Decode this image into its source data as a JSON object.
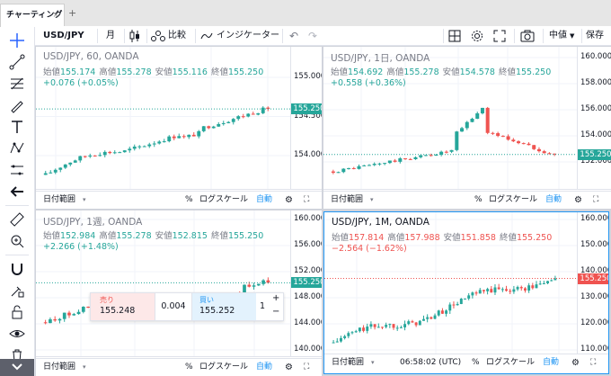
{
  "tab": {
    "label": "チャーティング"
  },
  "toolbar": {
    "symbol": "USD/JPY",
    "interval": "月",
    "compare": "比較",
    "indicators": "インジケーター",
    "price_type": "中値",
    "save": "保存"
  },
  "charts": [
    {
      "title": "USD/JPY, 60, OANDA",
      "ohlc": {
        "o_label": "始値",
        "o": "155.174",
        "h_label": "高値",
        "h": "155.278",
        "l_label": "安値",
        "l": "155.116",
        "c_label": "終値",
        "c": "155.250"
      },
      "change": "+0.076 (+0.05%)",
      "price_tag": "155.250",
      "y_ticks": [
        "155.000",
        "154.500",
        "154.000"
      ],
      "x_ticks": [
        "7",
        "12:00",
        "8",
        "09:00"
      ],
      "bottom": {
        "range": "日付範囲",
        "percent": "%",
        "log": "ログスケール",
        "auto": "自動"
      }
    },
    {
      "title": "USD/JPY, 1日, OANDA",
      "ohlc": {
        "o_label": "始値",
        "o": "154.692",
        "h_label": "高値",
        "h": "155.278",
        "l_label": "安値",
        "l": "154.578",
        "c_label": "終値",
        "c": "155.250"
      },
      "change": "+0.558 (+0.36%)",
      "price_tag": "155.250",
      "y_ticks": [
        "160.000",
        "158.000",
        "156.000",
        "154.000",
        "152.000"
      ],
      "x_ticks": [
        "4月",
        "10",
        "19",
        "5月",
        "10"
      ],
      "bottom": {
        "range": "日付範囲",
        "percent": "%",
        "log": "ログスケール",
        "auto": "自動"
      }
    },
    {
      "title": "USD/JPY, 1週, OANDA",
      "ohlc": {
        "o_label": "始値",
        "o": "152.984",
        "h_label": "高値",
        "h": "155.278",
        "l_label": "安値",
        "l": "152.815",
        "c_label": "終値",
        "c": "155.250"
      },
      "change": "+2.266 (+1.48%)",
      "price_tag": "155.250",
      "y_ticks": [
        "160.000",
        "156.000",
        "152.000",
        "148.000",
        "144.000",
        "140.000"
      ],
      "x_ticks": [
        "11月",
        "2024",
        "3月",
        "5月"
      ],
      "bottom": {
        "range": "日付範囲",
        "percent": "%",
        "log": "ログスケール",
        "auto": "自動"
      },
      "trade": {
        "sell_label": "売り",
        "sell_price": "155.248",
        "spread": "0.004",
        "buy_label": "買い",
        "buy_price": "155.252",
        "qty": "1",
        "plus": "+",
        "minus": "−"
      }
    },
    {
      "title": "USD/JPY, 1M, OANDA",
      "ohlc": {
        "o_label": "始値",
        "o": "157.814",
        "h_label": "高値",
        "h": "157.988",
        "l_label": "安値",
        "l": "151.858",
        "c_label": "終値",
        "c": "155.250"
      },
      "change": "−2.564 (−1.62%)",
      "price_tag": "155.250",
      "y_ticks": [
        "160.000",
        "150.000",
        "140.000",
        "130.000",
        "120.000",
        "110.000"
      ],
      "x_ticks": [
        "2022",
        "2023",
        "2024",
        "8月"
      ],
      "bottom": {
        "range": "日付範囲",
        "time": "06:58:02 (UTC)",
        "percent": "%",
        "log": "ログスケール",
        "auto": "自動"
      }
    }
  ],
  "colors": {
    "up": "#26a69a",
    "down": "#ef5350",
    "accent": "#2196f3"
  }
}
